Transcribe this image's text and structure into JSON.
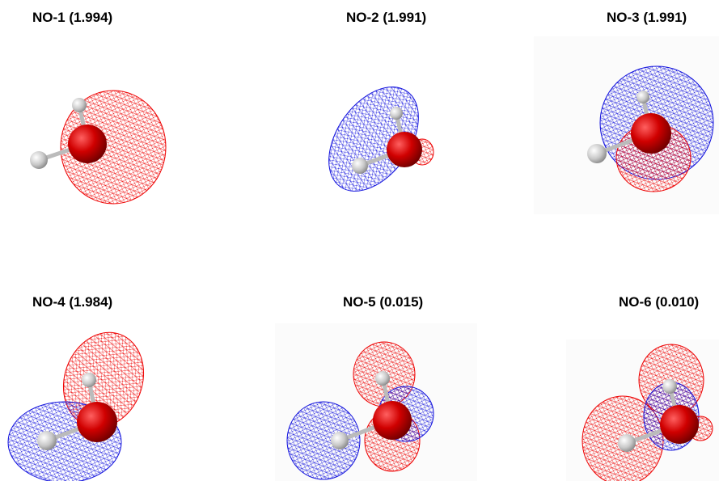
{
  "panels": [
    {
      "label": "NO-1 (1.994)"
    },
    {
      "label": "NO-2 (1.991)"
    },
    {
      "label": "NO-3 (1.991)"
    },
    {
      "label": "NO-4 (1.984)"
    },
    {
      "label": "NO-5 (0.015)"
    },
    {
      "label": "NO-6 (0.010)"
    }
  ]
}
